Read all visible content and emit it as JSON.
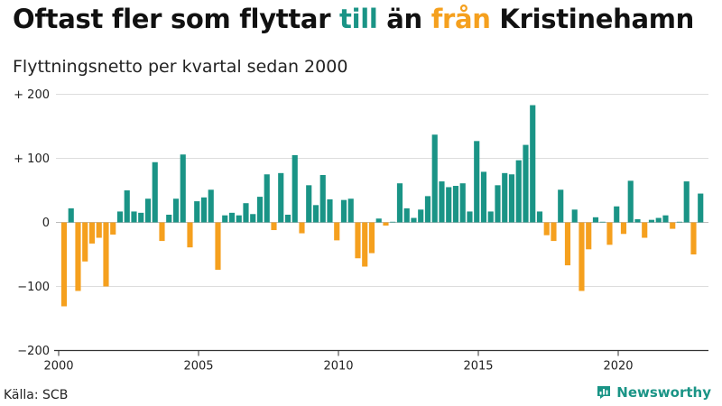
{
  "header": {
    "title_part1": "Oftast fler som flyttar ",
    "title_till": "till",
    "title_part2": " än ",
    "title_fran": "från",
    "title_part3": " Kristinehamn",
    "subtitle": "Flyttningsnetto per kvartal sedan 2000"
  },
  "footer": {
    "source": "Källa: SCB",
    "brand": "Newsworthy"
  },
  "colors": {
    "positive": "#1a9486",
    "negative": "#f5a01e",
    "grid": "#dddddd",
    "axis": "#333333"
  },
  "icons": {
    "brand_logo": "bar-chart-icon"
  },
  "chart_data": {
    "type": "bar",
    "title": "Oftast fler som flyttar till än från Kristinehamn",
    "subtitle": "Flyttningsnetto per kvartal sedan 2000",
    "x_start": "2000 Q1",
    "x_tick_labels": [
      "2000",
      "2005",
      "2010",
      "2015",
      "2020"
    ],
    "y_tick_labels": [
      "+ 200",
      "+ 100",
      "0",
      "−100",
      "−200"
    ],
    "ylim": [
      -200,
      200
    ],
    "grid": true,
    "values": [
      -131,
      22,
      -107,
      -61,
      -33,
      -24,
      -100,
      -19,
      17,
      50,
      17,
      15,
      37,
      94,
      -29,
      12,
      37,
      106,
      -39,
      33,
      39,
      51,
      -74,
      11,
      15,
      11,
      30,
      13,
      40,
      75,
      -12,
      77,
      12,
      105,
      -17,
      58,
      27,
      74,
      36,
      -28,
      35,
      37,
      -56,
      -69,
      -48,
      6,
      -5,
      1,
      61,
      22,
      7,
      20,
      41,
      137,
      64,
      55,
      57,
      61,
      17,
      127,
      79,
      17,
      58,
      77,
      75,
      97,
      121,
      183,
      17,
      -20,
      -29,
      51,
      -67,
      20,
      -107,
      -42,
      8,
      1,
      -35,
      25,
      -18,
      65,
      5,
      -24,
      4,
      7,
      11,
      -10,
      1,
      64,
      -50,
      45
    ]
  }
}
